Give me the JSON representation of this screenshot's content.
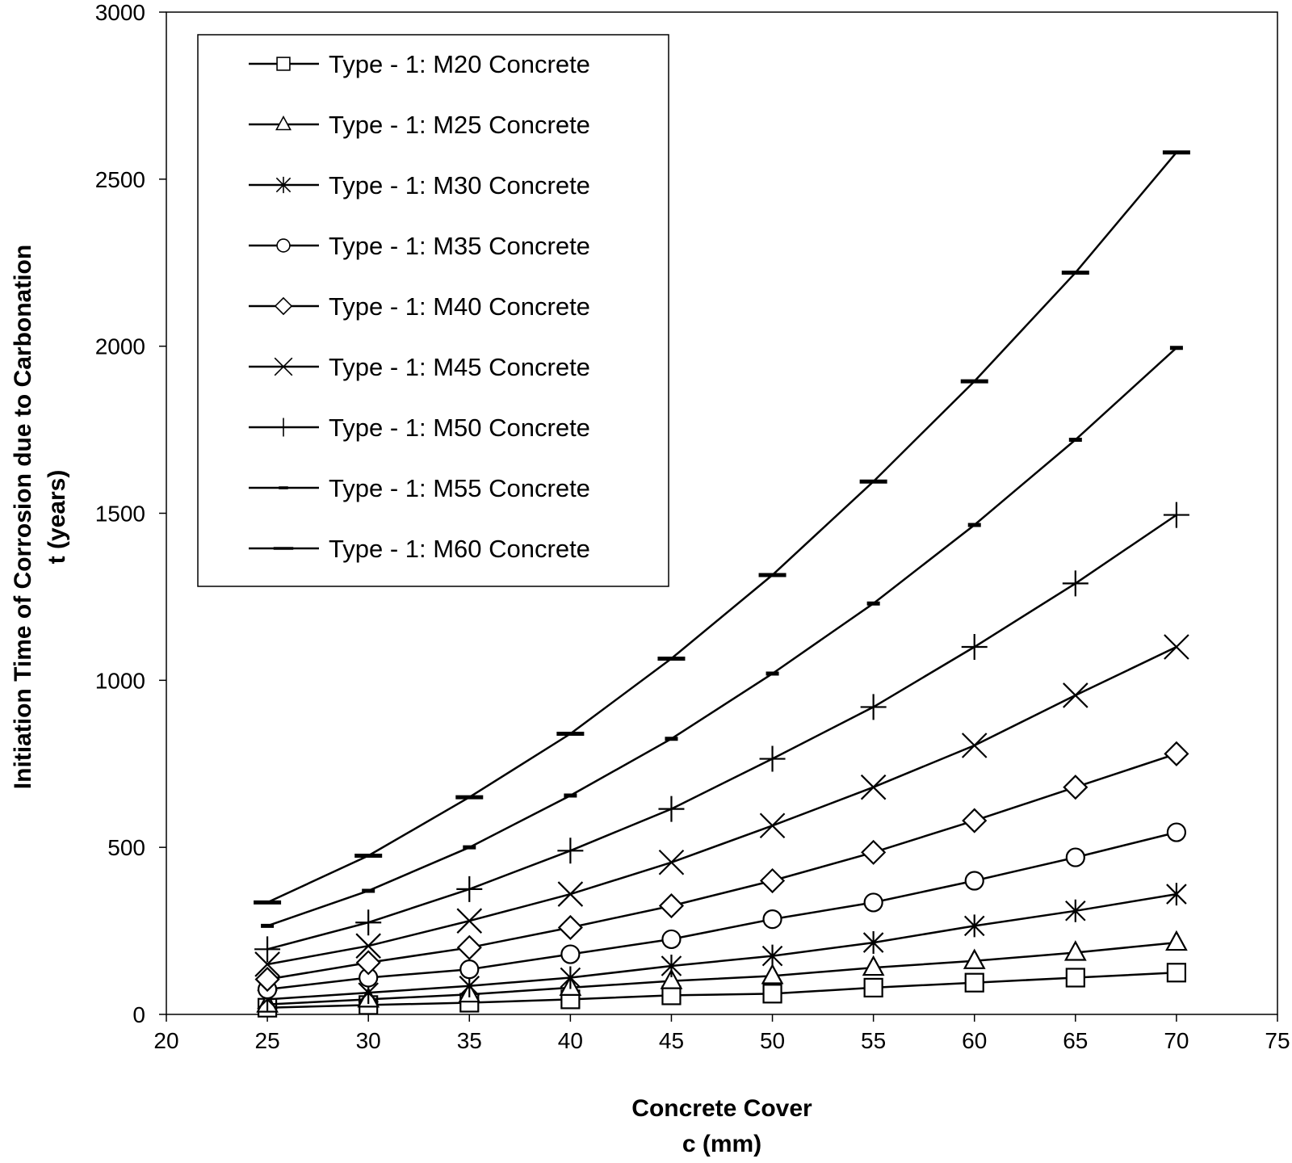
{
  "chart_data": {
    "type": "line",
    "title": "",
    "xlabel": "Concrete Cover",
    "xlabel_line2": "c (mm)",
    "ylabel": "Initiation Time of Corrosion due to Carbonation",
    "ylabel_line2": "t (years)",
    "xlim": [
      20,
      75
    ],
    "ylim": [
      0,
      3000
    ],
    "xticks": [
      20,
      25,
      30,
      35,
      40,
      45,
      50,
      55,
      60,
      65,
      70,
      75
    ],
    "yticks": [
      0,
      500,
      1000,
      1500,
      2000,
      2500,
      3000
    ],
    "tick_labels_x": [
      "20",
      "25",
      "30",
      "35",
      "40",
      "45",
      "50",
      "55",
      "60",
      "65",
      "70",
      "75"
    ],
    "tick_labels_y": [
      "0",
      "500",
      "1000",
      "1500",
      "2000",
      "2500",
      "3000"
    ],
    "grid": false,
    "legend_position": "top-left",
    "x": [
      25,
      30,
      35,
      40,
      45,
      50,
      55,
      60,
      65,
      70
    ],
    "series": [
      {
        "name": "Type - 1:  M20 Concrete",
        "marker": "square",
        "values": [
          20,
          28,
          35,
          45,
          57,
          62,
          80,
          95,
          110,
          125
        ]
      },
      {
        "name": "Type - 1:  M25 Concrete",
        "marker": "triangle",
        "values": [
          30,
          45,
          60,
          80,
          100,
          115,
          140,
          160,
          185,
          215
        ]
      },
      {
        "name": "Type - 1:  M30 Concrete",
        "marker": "asterisk",
        "values": [
          45,
          65,
          85,
          110,
          145,
          175,
          215,
          265,
          310,
          360
        ]
      },
      {
        "name": "Type - 1:  M35 Concrete",
        "marker": "circle",
        "values": [
          75,
          110,
          135,
          180,
          225,
          285,
          335,
          400,
          470,
          545
        ]
      },
      {
        "name": "Type - 1:  M40 Concrete",
        "marker": "diamond",
        "values": [
          105,
          155,
          200,
          260,
          325,
          400,
          485,
          580,
          680,
          780
        ]
      },
      {
        "name": "Type - 1:  M45 Concrete",
        "marker": "x",
        "values": [
          150,
          205,
          280,
          360,
          455,
          565,
          680,
          805,
          955,
          1100
        ]
      },
      {
        "name": "Type - 1:  M50 Concrete",
        "marker": "plus",
        "values": [
          195,
          275,
          375,
          490,
          615,
          765,
          920,
          1100,
          1290,
          1495
        ]
      },
      {
        "name": "Type - 1:  M55 Concrete",
        "marker": "dash-small",
        "values": [
          265,
          370,
          500,
          655,
          825,
          1020,
          1230,
          1465,
          1720,
          1995
        ]
      },
      {
        "name": "Type - 1:  M60 Concrete",
        "marker": "dash-large",
        "values": [
          335,
          475,
          650,
          840,
          1065,
          1315,
          1595,
          1895,
          2220,
          2580
        ]
      }
    ]
  }
}
